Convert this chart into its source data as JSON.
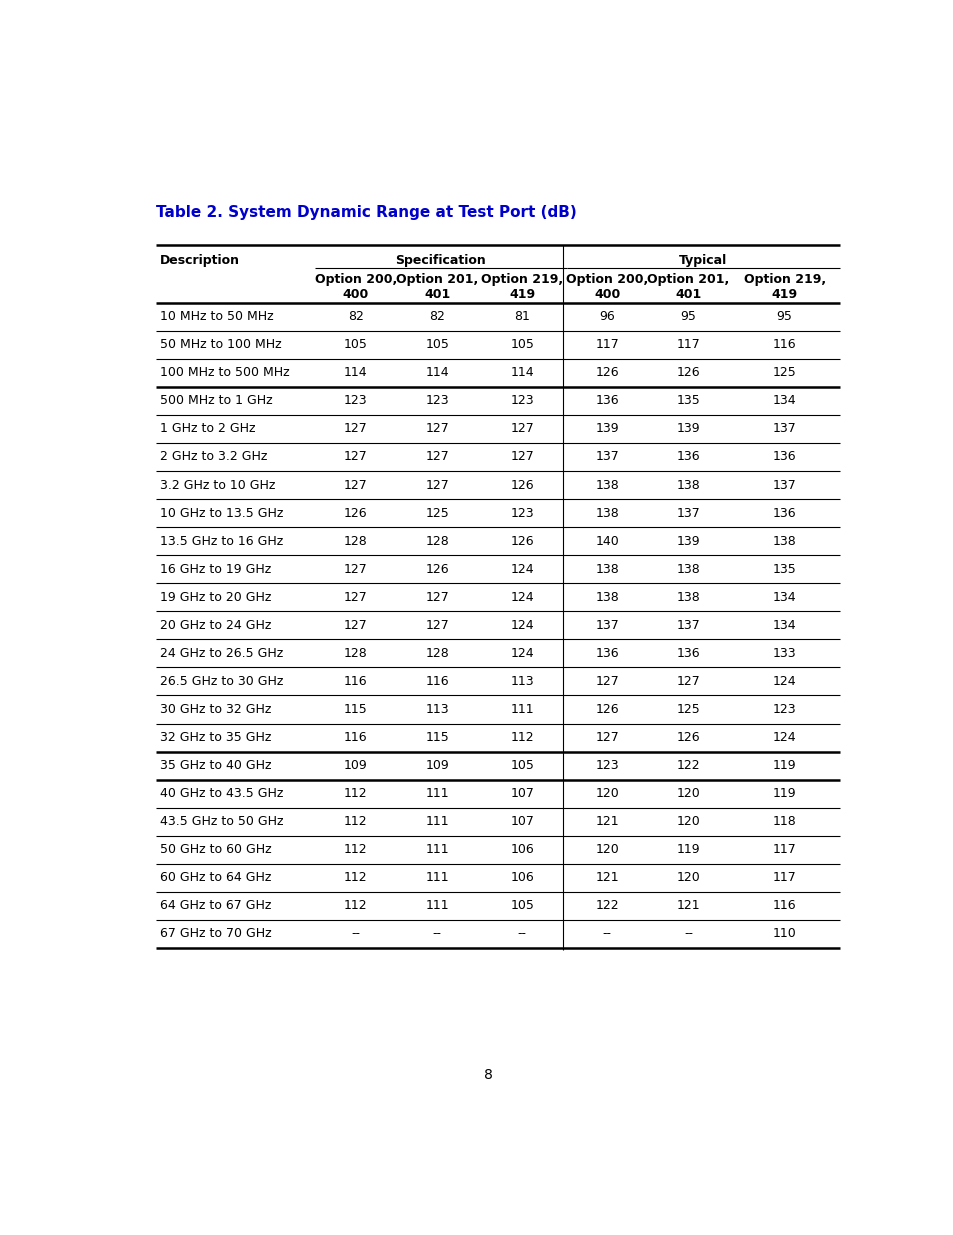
{
  "title": "Table 2. System Dynamic Range at Test Port (dB)",
  "title_color": "#0000CC",
  "col_headers_row2": [
    "",
    "Option 200,\n400",
    "Option 201,\n401",
    "Option 219,\n419",
    "Option 200,\n400",
    "Option 201,\n401",
    "Option 219,\n419"
  ],
  "rows": [
    [
      "10 MHz to 50 MHz",
      "82",
      "82",
      "81",
      "96",
      "95",
      "95"
    ],
    [
      "50 MHz to 100 MHz",
      "105",
      "105",
      "105",
      "117",
      "117",
      "116"
    ],
    [
      "100 MHz to 500 MHz",
      "114",
      "114",
      "114",
      "126",
      "126",
      "125"
    ],
    [
      "500 MHz to 1 GHz",
      "123",
      "123",
      "123",
      "136",
      "135",
      "134"
    ],
    [
      "1 GHz to 2 GHz",
      "127",
      "127",
      "127",
      "139",
      "139",
      "137"
    ],
    [
      "2 GHz to 3.2 GHz",
      "127",
      "127",
      "127",
      "137",
      "136",
      "136"
    ],
    [
      "3.2 GHz to 10 GHz",
      "127",
      "127",
      "126",
      "138",
      "138",
      "137"
    ],
    [
      "10 GHz to 13.5 GHz",
      "126",
      "125",
      "123",
      "138",
      "137",
      "136"
    ],
    [
      "13.5 GHz to 16 GHz",
      "128",
      "128",
      "126",
      "140",
      "139",
      "138"
    ],
    [
      "16 GHz to 19 GHz",
      "127",
      "126",
      "124",
      "138",
      "138",
      "135"
    ],
    [
      "19 GHz to 20 GHz",
      "127",
      "127",
      "124",
      "138",
      "138",
      "134"
    ],
    [
      "20 GHz to 24 GHz",
      "127",
      "127",
      "124",
      "137",
      "137",
      "134"
    ],
    [
      "24 GHz to 26.5 GHz",
      "128",
      "128",
      "124",
      "136",
      "136",
      "133"
    ],
    [
      "26.5 GHz to 30 GHz",
      "116",
      "116",
      "113",
      "127",
      "127",
      "124"
    ],
    [
      "30 GHz to 32 GHz",
      "115",
      "113",
      "111",
      "126",
      "125",
      "123"
    ],
    [
      "32 GHz to 35 GHz",
      "116",
      "115",
      "112",
      "127",
      "126",
      "124"
    ],
    [
      "35 GHz to 40 GHz",
      "109",
      "109",
      "105",
      "123",
      "122",
      "119"
    ],
    [
      "40 GHz to 43.5 GHz",
      "112",
      "111",
      "107",
      "120",
      "120",
      "119"
    ],
    [
      "43.5 GHz to 50 GHz",
      "112",
      "111",
      "107",
      "121",
      "120",
      "118"
    ],
    [
      "50 GHz to 60 GHz",
      "112",
      "111",
      "106",
      "120",
      "119",
      "117"
    ],
    [
      "60 GHz to 64 GHz",
      "112",
      "111",
      "106",
      "121",
      "120",
      "117"
    ],
    [
      "64 GHz to 67 GHz",
      "112",
      "111",
      "105",
      "122",
      "121",
      "116"
    ],
    [
      "67 GHz to 70 GHz",
      "--",
      "--",
      "--",
      "--",
      "--",
      "110"
    ]
  ],
  "thick_after_rows": [
    2,
    15,
    16
  ],
  "bg_color": "#ffffff",
  "text_color": "#000000",
  "header_fontsize": 9,
  "body_fontsize": 9,
  "page_number": "8"
}
